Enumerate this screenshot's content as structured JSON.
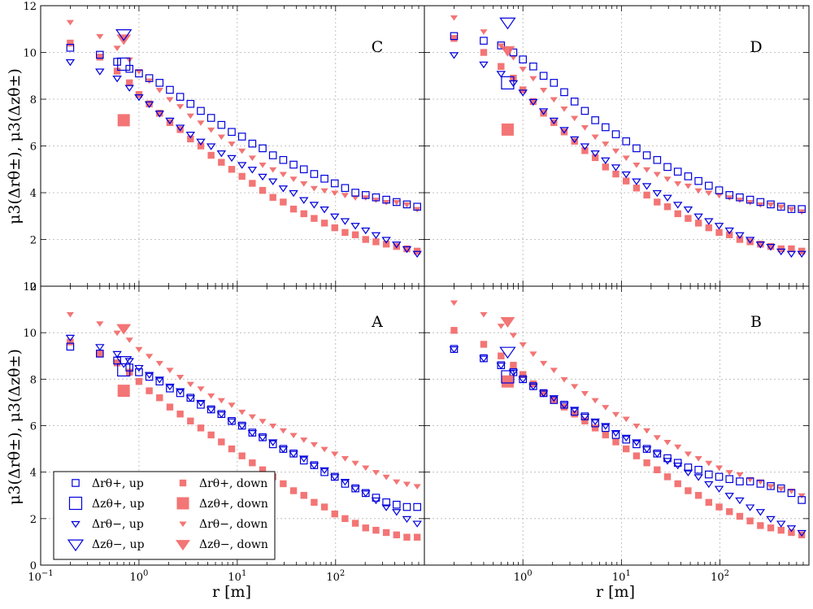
{
  "colors": {
    "up": "#0000dd",
    "down": "#f26666"
  },
  "labels": {
    "xlabel": "r [m]",
    "ylabel": "μ3(Δrθ±), μ3(Δzθ±)",
    "xticks": [
      "10−1",
      "100",
      "101",
      "102"
    ],
    "yticks": [
      "0",
      "2",
      "4",
      "6",
      "8",
      "10",
      "12"
    ]
  },
  "chart_data": {
    "type": "scatter",
    "xscale": "log",
    "xlim_left": [
      0.1,
      800
    ],
    "xlim_right": [
      0.1,
      800
    ],
    "ylim": [
      0,
      12
    ],
    "grid": true,
    "legend_location": "lower-left of panel A",
    "legend": [
      {
        "key": "r_plus_up",
        "label": "Δrθ+, up"
      },
      {
        "key": "r_plus_down",
        "label": "Δrθ+, down"
      },
      {
        "key": "z_plus_up",
        "label": "Δzθ+, up"
      },
      {
        "key": "z_plus_down",
        "label": "Δzθ+, down"
      },
      {
        "key": "r_minus_up",
        "label": "Δrθ−, up"
      },
      {
        "key": "r_minus_down",
        "label": "Δrθ−, down"
      },
      {
        "key": "z_minus_up",
        "label": "Δzθ−, up"
      },
      {
        "key": "z_minus_down",
        "label": "Δzθ−, down"
      }
    ],
    "panels": [
      {
        "label": "C",
        "series": {
          "r_plus_up": [
            10.2,
            9.9,
            9.6,
            9.3,
            9.1,
            8.9,
            8.7,
            8.4,
            8.1,
            7.8,
            7.5,
            7.2,
            6.9,
            6.6,
            6.4,
            6.1,
            5.9,
            5.6,
            5.4,
            5.2,
            5.0,
            4.8,
            4.6,
            4.4,
            4.2,
            4.0,
            3.9,
            3.8,
            3.7,
            3.6,
            3.5,
            3.4
          ],
          "r_plus_down": [
            10.4,
            9.8,
            9.2,
            8.7,
            8.2,
            7.8,
            7.4,
            7.0,
            6.7,
            6.3,
            6.0,
            5.6,
            5.3,
            5.0,
            4.7,
            4.4,
            4.1,
            3.8,
            3.6,
            3.3,
            3.1,
            2.9,
            2.7,
            2.5,
            2.3,
            2.2,
            2.0,
            1.9,
            1.8,
            1.7,
            1.6,
            1.5
          ],
          "r_minus_up": [
            9.6,
            9.2,
            8.9,
            8.5,
            8.1,
            7.8,
            7.4,
            7.1,
            6.8,
            6.5,
            6.2,
            6.0,
            5.7,
            5.5,
            5.2,
            5.0,
            4.7,
            4.5,
            4.2,
            4.0,
            3.7,
            3.5,
            3.3,
            3.0,
            2.8,
            2.6,
            2.4,
            2.2,
            2.0,
            1.8,
            1.6,
            1.4
          ],
          "r_minus_down": [
            11.3,
            10.7,
            10.2,
            9.7,
            9.2,
            8.8,
            8.4,
            8.0,
            7.7,
            7.3,
            7.0,
            6.7,
            6.4,
            6.1,
            5.8,
            5.5,
            5.2,
            5.0,
            4.8,
            4.6,
            4.4,
            4.2,
            4.1,
            4.0,
            3.9,
            3.8,
            3.8,
            3.7,
            3.6,
            3.6,
            3.5,
            3.3
          ],
          "z_plus_up": 9.5,
          "z_plus_down": 7.1,
          "z_minus_up": 10.8,
          "z_minus_down": 10.6
        }
      },
      {
        "label": "D",
        "series": {
          "r_plus_up": [
            10.7,
            10.5,
            10.3,
            10.0,
            9.7,
            9.4,
            9.0,
            8.7,
            8.3,
            7.9,
            7.5,
            7.1,
            6.8,
            6.5,
            6.2,
            5.9,
            5.6,
            5.4,
            5.1,
            4.9,
            4.7,
            4.5,
            4.3,
            4.1,
            3.9,
            3.8,
            3.7,
            3.6,
            3.5,
            3.4,
            3.3,
            3.3
          ],
          "r_plus_down": [
            10.6,
            10.0,
            9.4,
            8.9,
            8.4,
            7.9,
            7.4,
            7.0,
            6.6,
            6.2,
            5.8,
            5.5,
            5.1,
            4.8,
            4.5,
            4.2,
            3.9,
            3.6,
            3.4,
            3.1,
            2.9,
            2.7,
            2.5,
            2.3,
            2.2,
            2.0,
            1.9,
            1.8,
            1.7,
            1.6,
            1.6,
            1.5
          ],
          "r_minus_up": [
            9.9,
            9.5,
            9.1,
            8.7,
            8.3,
            7.9,
            7.5,
            7.1,
            6.7,
            6.3,
            6.0,
            5.7,
            5.4,
            5.1,
            4.8,
            4.5,
            4.3,
            4.0,
            3.8,
            3.5,
            3.3,
            3.0,
            2.8,
            2.6,
            2.4,
            2.2,
            2.0,
            1.8,
            1.7,
            1.5,
            1.4,
            1.4
          ],
          "r_minus_down": [
            11.5,
            10.9,
            10.3,
            9.8,
            9.3,
            8.9,
            8.4,
            8.0,
            7.6,
            7.2,
            6.8,
            6.4,
            6.1,
            5.8,
            5.5,
            5.2,
            5.0,
            4.8,
            4.6,
            4.4,
            4.3,
            4.1,
            4.0,
            3.9,
            3.8,
            3.7,
            3.6,
            3.5,
            3.5,
            3.4,
            3.3,
            3.2
          ],
          "z_plus_up": 8.7,
          "z_plus_down": 6.7,
          "z_minus_up": 11.3,
          "z_minus_down": 10.1
        }
      },
      {
        "label": "A",
        "series": {
          "r_plus_up": [
            9.4,
            9.1,
            8.8,
            8.5,
            8.3,
            8.1,
            7.9,
            7.6,
            7.4,
            7.2,
            6.9,
            6.7,
            6.5,
            6.2,
            6.0,
            5.7,
            5.5,
            5.2,
            5.0,
            4.8,
            4.5,
            4.3,
            4.0,
            3.8,
            3.5,
            3.3,
            3.1,
            2.9,
            2.7,
            2.6,
            2.5,
            2.5
          ],
          "r_plus_down": [
            9.6,
            9.1,
            8.7,
            8.3,
            7.9,
            7.5,
            7.2,
            6.8,
            6.5,
            6.2,
            5.9,
            5.6,
            5.3,
            5.0,
            4.7,
            4.4,
            4.1,
            3.8,
            3.5,
            3.2,
            3.0,
            2.7,
            2.5,
            2.2,
            2.0,
            1.8,
            1.6,
            1.5,
            1.4,
            1.3,
            1.2,
            1.2
          ],
          "r_minus_up": [
            9.8,
            9.4,
            9.1,
            8.8,
            8.5,
            8.2,
            8.0,
            7.7,
            7.5,
            7.2,
            7.0,
            6.7,
            6.5,
            6.2,
            6.0,
            5.7,
            5.5,
            5.3,
            5.0,
            4.8,
            4.6,
            4.3,
            4.1,
            3.8,
            3.6,
            3.3,
            3.1,
            2.8,
            2.5,
            2.3,
            2.0,
            1.8
          ],
          "r_minus_down": [
            10.8,
            10.4,
            10.0,
            9.7,
            9.3,
            9.0,
            8.7,
            8.4,
            8.1,
            7.8,
            7.6,
            7.3,
            7.1,
            6.9,
            6.6,
            6.4,
            6.2,
            6.0,
            5.8,
            5.6,
            5.4,
            5.2,
            5.0,
            4.8,
            4.6,
            4.4,
            4.2,
            4.0,
            3.8,
            3.6,
            3.5,
            3.4
          ],
          "z_plus_up": 8.4,
          "z_plus_down": 7.5,
          "z_minus_up": 8.8,
          "z_minus_down": 10.2
        }
      },
      {
        "label": "B",
        "series": {
          "r_plus_up": [
            9.3,
            8.9,
            8.6,
            8.3,
            8.0,
            7.7,
            7.4,
            7.1,
            6.9,
            6.6,
            6.4,
            6.1,
            5.9,
            5.6,
            5.4,
            5.2,
            5.0,
            4.8,
            4.6,
            4.4,
            4.2,
            4.1,
            3.9,
            3.8,
            3.7,
            3.6,
            3.6,
            3.5,
            3.4,
            3.3,
            3.1,
            2.8
          ],
          "r_plus_down": [
            10.1,
            9.5,
            9.0,
            8.6,
            8.2,
            7.8,
            7.4,
            7.1,
            6.8,
            6.5,
            6.2,
            5.9,
            5.6,
            5.3,
            5.0,
            4.7,
            4.4,
            4.1,
            3.8,
            3.5,
            3.2,
            3.0,
            2.7,
            2.5,
            2.3,
            2.1,
            1.9,
            1.7,
            1.6,
            1.5,
            1.4,
            1.3
          ],
          "r_minus_up": [
            9.3,
            8.9,
            8.6,
            8.3,
            8.0,
            7.7,
            7.4,
            7.2,
            6.9,
            6.7,
            6.4,
            6.2,
            6.0,
            5.7,
            5.5,
            5.3,
            5.0,
            4.8,
            4.5,
            4.3,
            4.0,
            3.8,
            3.5,
            3.3,
            3.0,
            2.8,
            2.5,
            2.3,
            2.0,
            1.8,
            1.6,
            1.4
          ],
          "r_minus_down": [
            11.3,
            10.8,
            10.3,
            9.9,
            9.5,
            9.1,
            8.7,
            8.4,
            8.0,
            7.7,
            7.4,
            7.1,
            6.8,
            6.5,
            6.3,
            6.0,
            5.8,
            5.5,
            5.3,
            5.1,
            4.8,
            4.6,
            4.4,
            4.2,
            4.0,
            3.9,
            3.7,
            3.6,
            3.4,
            3.3,
            3.2,
            3.0
          ],
          "z_plus_up": 8.1,
          "z_plus_down": 7.9,
          "z_minus_up": 9.2,
          "z_minus_down": 10.5
        }
      }
    ]
  }
}
